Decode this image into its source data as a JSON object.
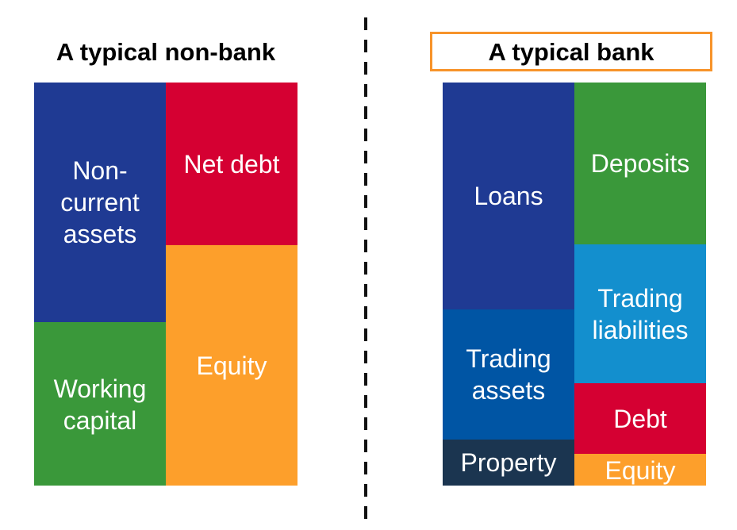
{
  "nonbank": {
    "title": "A typical non-bank",
    "blocks": {
      "non_current_assets": {
        "label": "Non-\ncurrent\nassets",
        "color": "#1f3a93"
      },
      "working_capital": {
        "label": "Working\ncapital",
        "color": "#3a983a"
      },
      "net_debt": {
        "label": "Net debt",
        "color": "#d50032"
      },
      "equity": {
        "label": "Equity",
        "color": "#fd9f2b"
      }
    }
  },
  "bank": {
    "title": "A typical bank",
    "title_border_color": "#f7932a",
    "blocks": {
      "loans": {
        "label": "Loans",
        "color": "#1f3a93"
      },
      "trading_assets": {
        "label": "Trading\nassets",
        "color": "#0055a4"
      },
      "property": {
        "label": "Property",
        "color": "#1b3550"
      },
      "deposits": {
        "label": "Deposits",
        "color": "#3a983a"
      },
      "trading_liabilities": {
        "label": "Trading\nliabilities",
        "color": "#138fce"
      },
      "debt": {
        "label": "Debt",
        "color": "#d50032"
      },
      "equity": {
        "label": "Equity",
        "color": "#fd9f2b"
      }
    }
  }
}
